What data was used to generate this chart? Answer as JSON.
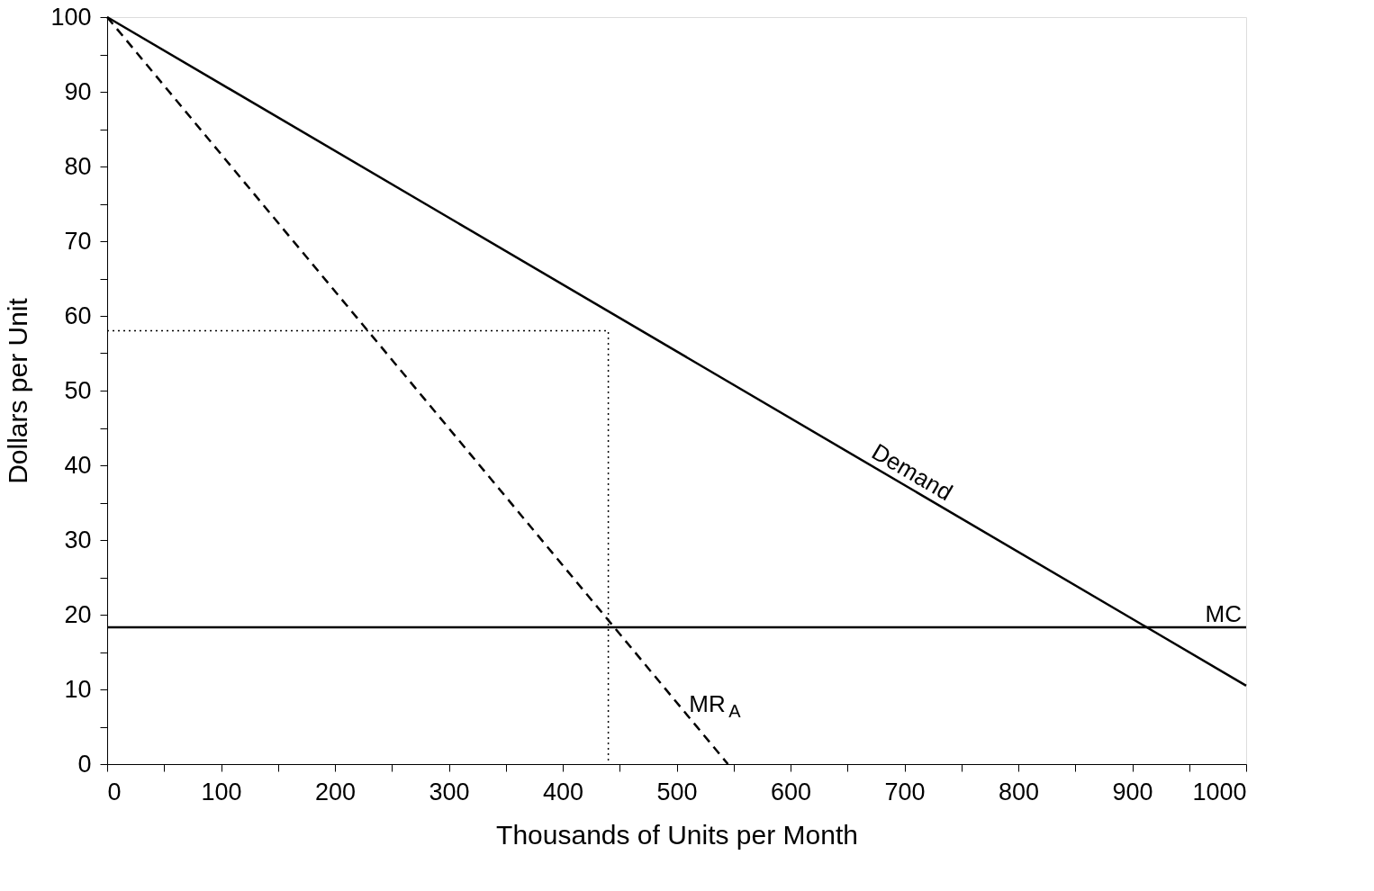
{
  "chart_data": {
    "type": "line",
    "xlabel": "Thousands of Units per Month",
    "ylabel": "Dollars per Unit",
    "xlim": [
      0,
      1000
    ],
    "ylim": [
      0,
      100
    ],
    "xticks": [
      0,
      {
        "value": 50,
        "label": null
      },
      100,
      {
        "value": 150,
        "label": null
      },
      200,
      {
        "value": 250,
        "label": null
      },
      300,
      {
        "value": 350,
        "label": null
      },
      400,
      {
        "value": 450,
        "label": null
      },
      500,
      {
        "value": 550,
        "label": null
      },
      600,
      {
        "value": 650,
        "label": null
      },
      700,
      {
        "value": 750,
        "label": null
      },
      800,
      {
        "value": 850,
        "label": null
      },
      900,
      {
        "value": 950,
        "label": null
      },
      1000
    ],
    "yticks": [
      0,
      {
        "value": 5,
        "label": null
      },
      10,
      {
        "value": 15,
        "label": null
      },
      20,
      {
        "value": 25,
        "label": null
      },
      30,
      {
        "value": 35,
        "label": null
      },
      40,
      {
        "value": 45,
        "label": null
      },
      50,
      {
        "value": 55,
        "label": null
      },
      60,
      {
        "value": 65,
        "label": null
      },
      70,
      {
        "value": 75,
        "label": null
      },
      80,
      {
        "value": 85,
        "label": null
      },
      90,
      {
        "value": 95,
        "label": null
      },
      100
    ],
    "grid": false,
    "marker": "none",
    "series": [
      {
        "name": "Demand",
        "color": "#000000",
        "line_style": "solid",
        "x": [
          0,
          1000
        ],
        "values": [
          100,
          10.5
        ]
      },
      {
        "name": "MR$_{A}$",
        "color": "#000000",
        "line_style": "dashed",
        "x": [
          0,
          545
        ],
        "values": [
          100,
          0
        ]
      },
      {
        "name": "MC",
        "color": "#000000",
        "line_style": "solid",
        "x": [
          0,
          1000
        ],
        "values": [
          18.3,
          18.3
        ]
      },
      {
        "color": "#000000",
        "line_style": "dotted",
        "x": [
          0,
          440,
          440
        ],
        "values": [
          58,
          58,
          0
        ]
      }
    ]
  }
}
